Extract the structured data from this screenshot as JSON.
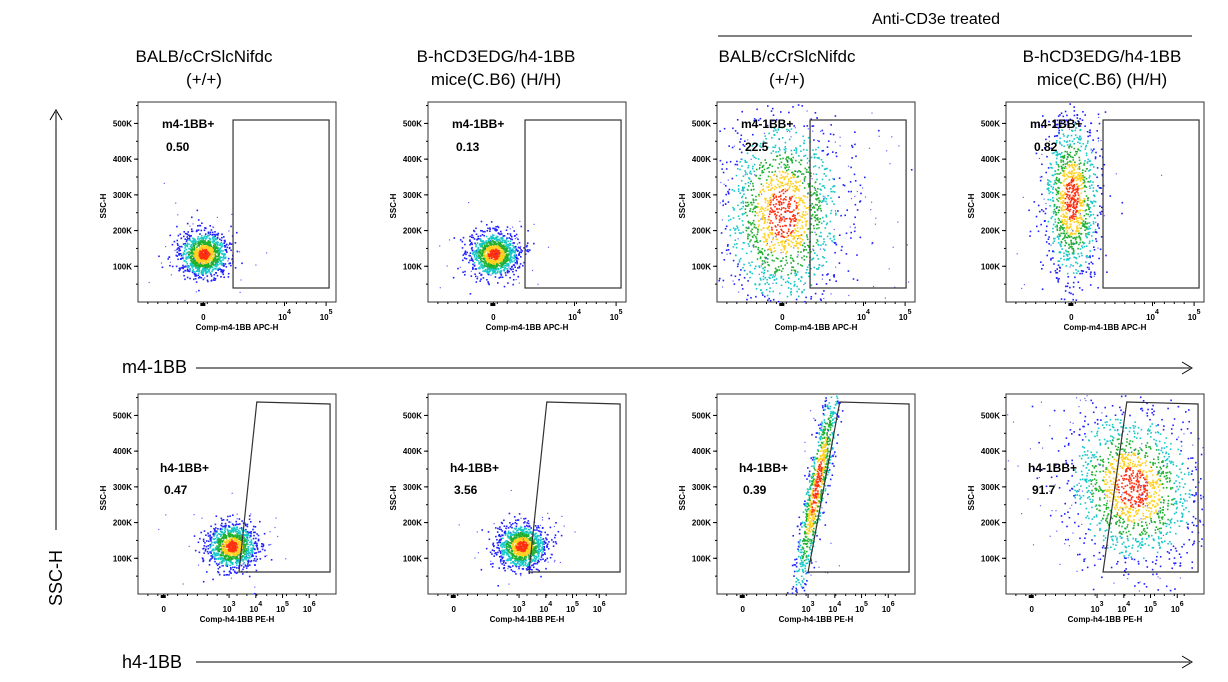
{
  "group_label": "Anti-CD3e treated",
  "column_titles": [
    [
      "BALB/cCrSlcNifdc",
      "(+/+)"
    ],
    [
      "B-hCD3EDG/h4-1BB",
      "mice(C.B6) (H/H)"
    ],
    [
      "BALB/cCrSlcNifdc",
      "(+/+)"
    ],
    [
      "B-hCD3EDG/h4-1BB",
      "mice(C.B6) (H/H)"
    ]
  ],
  "big_axes": {
    "row1_x": "m4-1BB",
    "row2_x": "h4-1BB",
    "y": "SSC-H"
  },
  "colors": {
    "low": "#2020ff",
    "mid": "#18c8c8",
    "high": "#20b030",
    "peak": "#ffd020",
    "hot": "#ff3010"
  },
  "chart_data": [
    {
      "type": "scatter",
      "row": 1,
      "column": 1,
      "xlabel": "Comp-m4-1BB APC-H",
      "ylabel": "SSC-H",
      "x_ticks": [
        "0",
        "10^4",
        "10^5"
      ],
      "y_ticks": [
        "100K",
        "200K",
        "300K",
        "400K",
        "500K"
      ],
      "gate": {
        "name": "m4-1BB+",
        "value": "0.50"
      },
      "population": {
        "center_x": 0,
        "center_y": 135000,
        "shape": "compact"
      }
    },
    {
      "type": "scatter",
      "row": 1,
      "column": 2,
      "xlabel": "Comp-m4-1BB APC-H",
      "ylabel": "SSC-H",
      "x_ticks": [
        "0",
        "10^4",
        "10^5"
      ],
      "y_ticks": [
        "100K",
        "200K",
        "300K",
        "400K",
        "500K"
      ],
      "gate": {
        "name": "m4-1BB+",
        "value": "0.13"
      },
      "population": {
        "center_x": 0,
        "center_y": 135000,
        "shape": "compact"
      }
    },
    {
      "type": "scatter",
      "row": 1,
      "column": 3,
      "xlabel": "Comp-m4-1BB APC-H",
      "ylabel": "SSC-H",
      "x_ticks": [
        "0",
        "10^4",
        "10^5"
      ],
      "y_ticks": [
        "100K",
        "200K",
        "300K",
        "400K",
        "500K"
      ],
      "gate": {
        "name": "m4-1BB+",
        "value": "22.5"
      },
      "population": {
        "center_x": 0,
        "center_y": 250000,
        "shape": "spread-wide"
      }
    },
    {
      "type": "scatter",
      "row": 1,
      "column": 4,
      "xlabel": "Comp-m4-1BB APC-H",
      "ylabel": "SSC-H",
      "x_ticks": [
        "0",
        "10^4",
        "10^5"
      ],
      "y_ticks": [
        "100K",
        "200K",
        "300K",
        "400K",
        "500K"
      ],
      "gate": {
        "name": "m4-1BB+",
        "value": "0.82"
      },
      "population": {
        "center_x": 0,
        "center_y": 290000,
        "shape": "tall"
      }
    },
    {
      "type": "scatter",
      "row": 2,
      "column": 1,
      "xlabel": "Comp-h4-1BB PE-H",
      "ylabel": "SSC-H",
      "x_ticks": [
        "0",
        "10^3",
        "10^4",
        "10^5",
        "10^6"
      ],
      "y_ticks": [
        "100K",
        "200K",
        "300K",
        "400K",
        "500K"
      ],
      "gate": {
        "name": "h4-1BB+",
        "value": "0.47"
      },
      "population": {
        "center_x": 1200,
        "center_y": 135000,
        "shape": "compact"
      }
    },
    {
      "type": "scatter",
      "row": 2,
      "column": 2,
      "xlabel": "Comp-h4-1BB PE-H",
      "ylabel": "SSC-H",
      "x_ticks": [
        "0",
        "10^3",
        "10^4",
        "10^5",
        "10^6"
      ],
      "y_ticks": [
        "100K",
        "200K",
        "300K",
        "400K",
        "500K"
      ],
      "gate": {
        "name": "h4-1BB+",
        "value": "3.56"
      },
      "population": {
        "center_x": 1200,
        "center_y": 135000,
        "shape": "compact"
      }
    },
    {
      "type": "scatter",
      "row": 2,
      "column": 3,
      "xlabel": "Comp-h4-1BB PE-H",
      "ylabel": "SSC-H",
      "x_ticks": [
        "0",
        "10^3",
        "10^4",
        "10^5",
        "10^6"
      ],
      "y_ticks": [
        "100K",
        "200K",
        "300K",
        "400K",
        "500K"
      ],
      "gate": {
        "name": "h4-1BB+",
        "value": "0.39"
      },
      "population": {
        "center_x": 2000,
        "center_y": 300000,
        "shape": "diagonal-streak"
      }
    },
    {
      "type": "scatter",
      "row": 2,
      "column": 4,
      "xlabel": "Comp-h4-1BB PE-H",
      "ylabel": "SSC-H",
      "x_ticks": [
        "0",
        "10^3",
        "10^4",
        "10^5",
        "10^6"
      ],
      "y_ticks": [
        "100K",
        "200K",
        "300K",
        "400K",
        "500K"
      ],
      "gate": {
        "name": "h4-1BB+",
        "value": "91.7"
      },
      "population": {
        "center_x": 20000,
        "center_y": 300000,
        "shape": "spread-right"
      }
    }
  ]
}
